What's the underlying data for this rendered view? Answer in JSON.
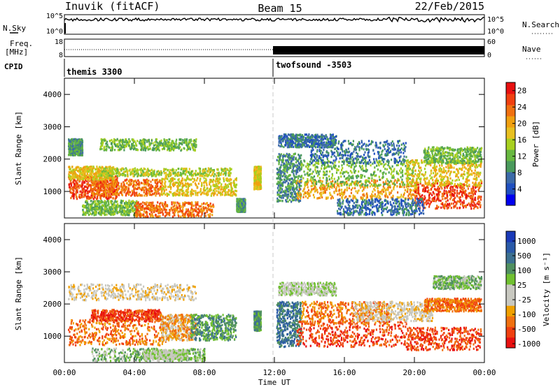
{
  "header": {
    "station": "Inuvik (fitACF)",
    "beam": "Beam 15",
    "date": "22/Feb/2015"
  },
  "ancillary": {
    "nsky_label": "N.Sky",
    "nsky_ticks": [
      "10^5",
      "10^0"
    ],
    "nsearch_label": "N.Search",
    "nsearch_ticks": [
      "10^5",
      "10^0"
    ],
    "freq_label_1": "Freq.",
    "freq_label_2": "[MHz]",
    "freq_ticks": [
      "18",
      "8"
    ],
    "nave_label": "Nave",
    "nave_ticks": [
      "60",
      "0"
    ],
    "cpid_label": "CPID",
    "cpid_segments": [
      {
        "name": "themis 3300",
        "start_hour": 0,
        "end_hour": 12
      },
      {
        "name": "twofsound -3503",
        "start_hour": 12,
        "end_hour": 24
      }
    ]
  },
  "colors": {
    "power_scale": [
      "#0000f0",
      "#2050c0",
      "#3c6aa8",
      "#4a9a5c",
      "#68b840",
      "#a8d020",
      "#e8c020",
      "#f0a010",
      "#f07010",
      "#f04010",
      "#e81010"
    ],
    "velocity_scale": [
      "#e81010",
      "#f04010",
      "#f07010",
      "#f0a000",
      "#c8c8c0",
      "#c8c8c0",
      "#70c030",
      "#509060",
      "#3c7090",
      "#2a5aa8",
      "#1a3ab8"
    ]
  },
  "chart_data": [
    {
      "type": "heatmap",
      "title": "",
      "xlabel": "Time UT",
      "ylabel": "Slant Range [km]",
      "x_tick_labels": [
        "00:00",
        "04:00",
        "08:00",
        "12:00",
        "16:00",
        "20:00",
        "00:00"
      ],
      "y_tick_labels": [
        "1000",
        "2000",
        "3000",
        "4000"
      ],
      "xlim_hours": [
        0,
        24
      ],
      "ylim_km": [
        180,
        4500
      ],
      "colorbar_label": "Power [dB]",
      "colorbar_ticks": [
        "28",
        "24",
        "20",
        "16",
        "12",
        "8",
        "4"
      ],
      "colorbar_range": [
        0,
        30
      ],
      "regions": [
        {
          "t0": 0.2,
          "t1": 3.0,
          "r0": 800,
          "r1": 1500,
          "level": 26
        },
        {
          "t0": 1.5,
          "t1": 5.5,
          "r0": 900,
          "r1": 1400,
          "level": 23
        },
        {
          "t0": 0.2,
          "t1": 2.8,
          "r0": 1400,
          "r1": 1800,
          "level": 19
        },
        {
          "t0": 5.5,
          "t1": 9.8,
          "r0": 900,
          "r1": 1450,
          "level": 17
        },
        {
          "t0": 2.0,
          "t1": 9.5,
          "r0": 1500,
          "r1": 1750,
          "level": 14
        },
        {
          "t0": 2.0,
          "t1": 7.5,
          "r0": 2300,
          "r1": 2650,
          "level": 12
        },
        {
          "t0": 0.2,
          "t1": 1.0,
          "r0": 2150,
          "r1": 2650,
          "level": 10
        },
        {
          "t0": 1.0,
          "t1": 4.2,
          "r0": 300,
          "r1": 750,
          "level": 13
        },
        {
          "t0": 4.0,
          "t1": 8.5,
          "r0": 250,
          "r1": 700,
          "level": 24
        },
        {
          "t0": 10.8,
          "t1": 11.2,
          "r0": 1100,
          "r1": 1800,
          "level": 18
        },
        {
          "t0": 9.8,
          "t1": 10.3,
          "r0": 400,
          "r1": 800,
          "level": 9
        },
        {
          "t0": 12.1,
          "t1": 13.5,
          "r0": 700,
          "r1": 2200,
          "level": 10
        },
        {
          "t0": 13.2,
          "t1": 20.2,
          "r0": 800,
          "r1": 1400,
          "level": 22
        },
        {
          "t0": 13.5,
          "t1": 20.0,
          "r0": 1200,
          "r1": 2000,
          "level": 12
        },
        {
          "t0": 14.0,
          "t1": 19.5,
          "r0": 1900,
          "r1": 2600,
          "level": 5
        },
        {
          "t0": 12.2,
          "t1": 15.5,
          "r0": 2400,
          "r1": 2800,
          "level": 5
        },
        {
          "t0": 20.0,
          "t1": 23.8,
          "r0": 500,
          "r1": 1300,
          "level": 27
        },
        {
          "t0": 19.5,
          "t1": 23.8,
          "r0": 1200,
          "r1": 2000,
          "level": 17
        },
        {
          "t0": 20.5,
          "t1": 23.8,
          "r0": 1900,
          "r1": 2400,
          "level": 13
        },
        {
          "t0": 15.5,
          "t1": 20.5,
          "r0": 300,
          "r1": 800,
          "level": 5
        }
      ]
    },
    {
      "type": "heatmap",
      "title": "",
      "xlabel": "Time UT",
      "ylabel": "Slant Range [km]",
      "x_tick_labels": [
        "00:00",
        "04:00",
        "08:00",
        "12:00",
        "16:00",
        "20:00",
        "00:00"
      ],
      "y_tick_labels": [
        "1000",
        "2000",
        "3000",
        "4000"
      ],
      "xlim_hours": [
        0,
        24
      ],
      "ylim_km": [
        180,
        4500
      ],
      "colorbar_label": "Velocity [m s⁻¹]",
      "colorbar_ticks": [
        "1000",
        "500",
        "100",
        "25",
        "-25",
        "-100",
        "-500",
        "-1000"
      ],
      "regions": [
        {
          "t0": 0.2,
          "t1": 5.8,
          "r0": 750,
          "r1": 1550,
          "level": 2
        },
        {
          "t0": 1.5,
          "t1": 5.5,
          "r0": 1500,
          "r1": 1850,
          "level": 1
        },
        {
          "t0": 5.5,
          "t1": 7.5,
          "r0": 900,
          "r1": 1700,
          "level": 3
        },
        {
          "t0": 7.2,
          "t1": 9.8,
          "r0": 900,
          "r1": 1700,
          "level": 7
        },
        {
          "t0": 0.2,
          "t1": 7.5,
          "r0": 2150,
          "r1": 2650,
          "level": 4
        },
        {
          "t0": 1.5,
          "t1": 8.0,
          "r0": 250,
          "r1": 650,
          "level": 6
        },
        {
          "t0": 4.5,
          "t1": 7.0,
          "r0": 300,
          "r1": 600,
          "level": 5
        },
        {
          "t0": 10.8,
          "t1": 11.2,
          "r0": 1200,
          "r1": 1800,
          "level": 7
        },
        {
          "t0": 12.1,
          "t1": 13.5,
          "r0": 700,
          "r1": 2100,
          "level": 8
        },
        {
          "t0": 13.2,
          "t1": 19.5,
          "r0": 700,
          "r1": 1500,
          "level": 1
        },
        {
          "t0": 13.5,
          "t1": 18.5,
          "r0": 1400,
          "r1": 2100,
          "level": 2
        },
        {
          "t0": 16.5,
          "t1": 21.0,
          "r0": 1500,
          "r1": 2100,
          "level": 4
        },
        {
          "t0": 12.2,
          "t1": 15.5,
          "r0": 2300,
          "r1": 2700,
          "level": 5
        },
        {
          "t0": 19.5,
          "t1": 23.8,
          "r0": 600,
          "r1": 1300,
          "level": 1
        },
        {
          "t0": 20.5,
          "t1": 23.8,
          "r0": 1800,
          "r1": 2200,
          "level": 2
        },
        {
          "t0": 21.0,
          "t1": 23.8,
          "r0": 2500,
          "r1": 2900,
          "level": 6
        }
      ]
    }
  ]
}
